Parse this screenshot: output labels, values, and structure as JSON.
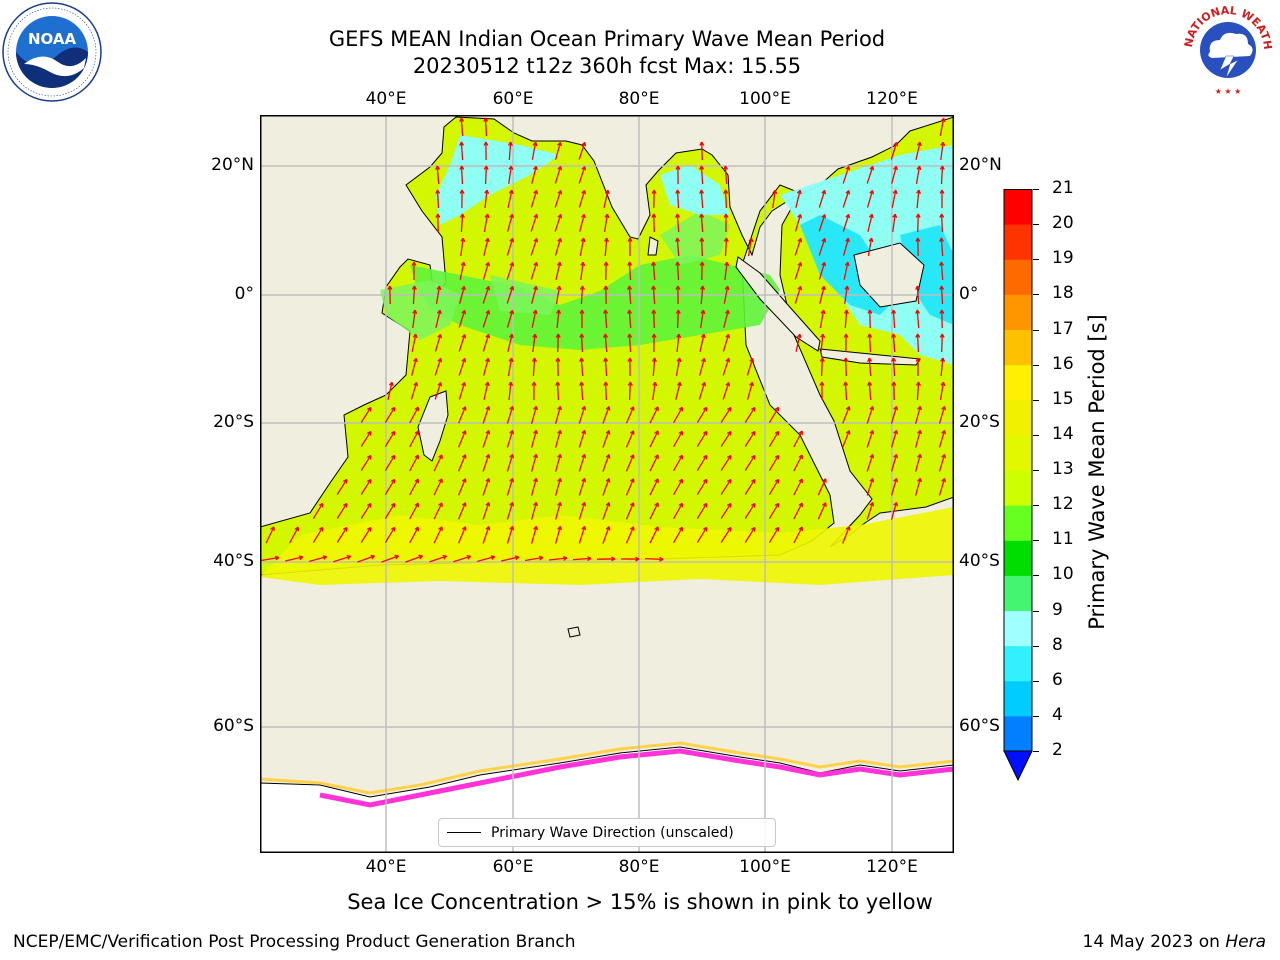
{
  "header": {
    "title_line1": "GEFS MEAN Indian Ocean Primary Wave Mean Period",
    "title_line2": "20230512 t12z 360h fcst   Max: 15.55"
  },
  "logos": {
    "noaa": {
      "text": "NOAA",
      "ring_text": "NATIONAL OCEANIC AND ATMOSPHERIC ADMINISTRATION · U.S. DEPARTMENT OF COMMERCE"
    },
    "nws": {
      "text": "NATIONAL WEATHER SERVICE"
    }
  },
  "map": {
    "lon_labels": [
      "40°E",
      "60°E",
      "80°E",
      "100°E",
      "120°E"
    ],
    "lat_labels": [
      "20°N",
      "0°",
      "20°S",
      "40°S",
      "60°S"
    ],
    "legend_label": "Primary Wave Direction (unscaled)",
    "colors": {
      "land": "#efeedf",
      "ocean_main": "#d2f700",
      "ocean_yellow": "#eef600",
      "ocean_green": "#5ff33a",
      "ocean_lightgreen": "#7df55d",
      "ocean_cyan": "#8affff",
      "ocean_blue": "#23e7f7",
      "ice": "#ff33d8",
      "arrow": "#ff0000",
      "grid": "#bdbdbd"
    }
  },
  "colorbar": {
    "label": "Primary Wave Mean Period [s]",
    "ticks": [
      "2",
      "4",
      "6",
      "8",
      "9",
      "10",
      "11",
      "12",
      "13",
      "14",
      "15",
      "16",
      "17",
      "18",
      "19",
      "20",
      "21"
    ],
    "colors": [
      "#0080ff",
      "#00ccff",
      "#33f0ff",
      "#a0ffff",
      "#44f571",
      "#00dd00",
      "#66ff22",
      "#ccff00",
      "#e2f800",
      "#f0f000",
      "#ffef00",
      "#ffc000",
      "#ff9600",
      "#ff6a00",
      "#ff3300",
      "#ff0000"
    ],
    "under_color": "#0010ff"
  },
  "footer": {
    "caption": "Sea Ice Concentration > 15% is shown in pink to yellow",
    "credit": "NCEP/EMC/Verification Post Processing Product Generation Branch",
    "date": "14 May 2023 on",
    "machine": "Hera"
  }
}
